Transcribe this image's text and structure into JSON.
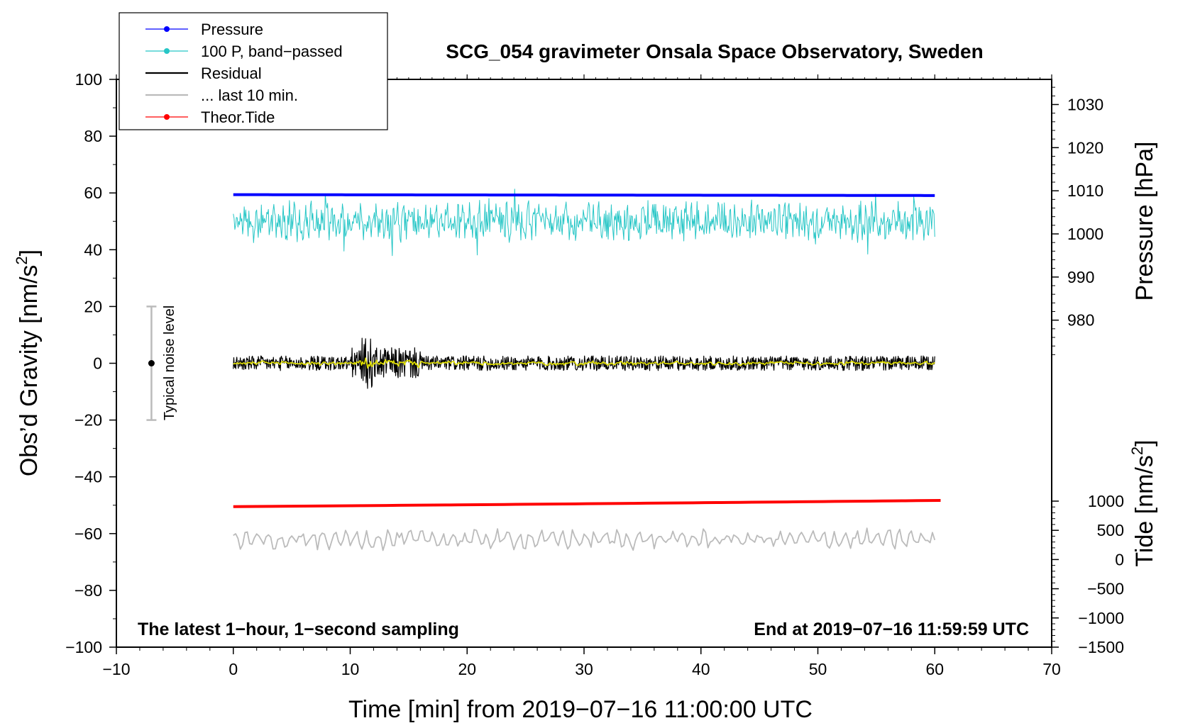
{
  "chart_data": {
    "type": "line",
    "title": "SCG_054 gravimeter Onsala Space Observatory, Sweden",
    "xlabel": "Time [min] from 2019−07−16 11:00:00 UTC",
    "ylabel_left_main": "Obs’d Gravity [nm/s",
    "ylabel_left_sup": "2",
    "ylabel_left_end": "]",
    "ylabel_right_pressure": "Pressure [hPa]",
    "ylabel_right_tide_main": "Tide [nm/s",
    "ylabel_right_tide_sup": "2",
    "ylabel_right_tide_end": "]",
    "footer_left": "The latest 1−hour, 1−second sampling",
    "footer_right": "End at 2019−07−16 11:59:59 UTC",
    "noise_label": "Typical noise level",
    "noise_bar": {
      "x": -7,
      "center": 0,
      "low": -20,
      "high": 20
    },
    "xlim": [
      -10,
      70
    ],
    "ylim": [
      -100,
      100
    ],
    "x_ticks": [
      "−10",
      "0",
      "10",
      "20",
      "30",
      "40",
      "50",
      "60",
      "70"
    ],
    "y_ticks": [
      "100",
      "80",
      "60",
      "40",
      "20",
      "0",
      "−20",
      "−40",
      "−60",
      "−80",
      "−100"
    ],
    "pressure_ticks": [
      "1030",
      "1020",
      "1010",
      "1000",
      "990",
      "980"
    ],
    "pressure_axis": {
      "value_at_gravity_0": 970,
      "hpa_per_nms2": 0.6583
    },
    "tide_ticks": [
      "1000",
      "500",
      "0",
      "−500",
      "−1000",
      "−1500"
    ],
    "tide_axis": {
      "value_at_gravity_minus100": -1500,
      "nms2_per_gravity_unit": 48.6
    },
    "legend": [
      {
        "label": "Pressure",
        "color": "#0000ff",
        "marker": true
      },
      {
        "label": "100 P, band−passed",
        "color": "#26c6c6",
        "marker": true
      },
      {
        "label": "Residual",
        "color": "#000000",
        "marker": false
      },
      {
        "label": "... last 10 min.",
        "color": "#bbbbbb",
        "marker": false
      },
      {
        "label": "Theor.Tide",
        "color": "#ff0000",
        "marker": true
      }
    ],
    "series": [
      {
        "name": "Pressure",
        "color": "#0000ff",
        "unit": "hPa",
        "x_range": [
          0,
          60
        ],
        "level_start": 1009.1,
        "level_end": 1008.9
      },
      {
        "name": "100 P, band−passed",
        "color": "#26c6c6",
        "unit": "nm/s2",
        "x_range": [
          0,
          60
        ],
        "mean": 50,
        "min": 36,
        "max": 64
      },
      {
        "name": "Residual",
        "color": "#000000",
        "unit": "nm/s2",
        "x_range": [
          0,
          60
        ],
        "mean": 0,
        "min": -12,
        "max": 12
      },
      {
        "name": "Residual (smoothed)",
        "color": "#e0e000",
        "unit": "nm/s2",
        "x_range": [
          0,
          60
        ],
        "mean": 0
      },
      {
        "name": "... last 10 min.",
        "color": "#bbbbbb",
        "unit": "nm/s2",
        "x_range": [
          0,
          60
        ],
        "mean": -62,
        "min": -67,
        "max": -58
      },
      {
        "name": "Theor.Tide",
        "color": "#ff0000",
        "unit": "nm/s2",
        "x": [
          0,
          60.5
        ],
        "y": [
          -50.5,
          -48.3
        ]
      }
    ],
    "grid": false
  }
}
